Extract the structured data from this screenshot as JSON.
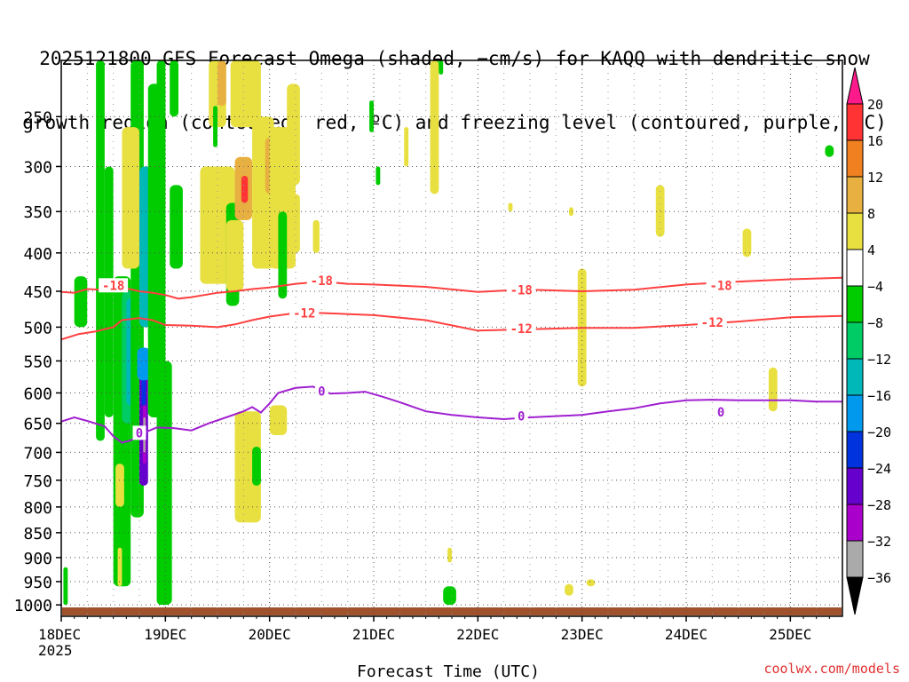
{
  "title_lines": [
    "2025121800 GFS Forecast Omega (shaded, −cm/s) for KAQQ with dendritic snow",
    "growth region (contoured, red, ºC) and freezing level (contoured, purple, ºC)"
  ],
  "credit": "coolwx.com/models",
  "chart_data": {
    "type": "heatmap",
    "title": "2025121800 GFS Forecast Omega (shaded, −cm/s) for KAQQ with dendritic snow growth region (contoured, red, ºC) and freezing level (contoured, purple, ºC)",
    "xlabel": "Forecast Time (UTC)",
    "ylabel": "",
    "x_ticks": [
      "18DEC\n2025",
      "19DEC",
      "20DEC",
      "21DEC",
      "22DEC",
      "23DEC",
      "24DEC",
      "25DEC"
    ],
    "x_range_hours": [
      0,
      180
    ],
    "y_ticks": [
      250,
      300,
      350,
      400,
      450,
      500,
      550,
      600,
      650,
      700,
      750,
      800,
      850,
      900,
      950,
      1000
    ],
    "y_range_hPa": [
      200,
      1025
    ],
    "grid": true,
    "colorbar": {
      "labels": [
        "20",
        "16",
        "12",
        "8",
        "4",
        "−4",
        "−8",
        "−12",
        "−16",
        "−20",
        "−24",
        "−28",
        "−32",
        "−36"
      ],
      "colors": [
        "#ff1a8c",
        "#ff3333",
        "#f08020",
        "#e8b040",
        "#e8e040",
        "#ffffff",
        "#00cc00",
        "#00cc66",
        "#00b8b8",
        "#0099ee",
        "#0033dd",
        "#6600cc",
        "#aa00cc",
        "#aaaaaa",
        "#000000"
      ]
    },
    "contours": [
      {
        "label": "-18",
        "color": "#ff4040",
        "points": [
          [
            0,
            451
          ],
          [
            3,
            452
          ],
          [
            6,
            447
          ],
          [
            9,
            448
          ],
          [
            12,
            445
          ],
          [
            15,
            446
          ],
          [
            18,
            450
          ],
          [
            21,
            452
          ],
          [
            24,
            455
          ],
          [
            27,
            460
          ],
          [
            30,
            458
          ],
          [
            33,
            455
          ],
          [
            36,
            452
          ],
          [
            40,
            450
          ],
          [
            44,
            447
          ],
          [
            48,
            445
          ],
          [
            54,
            440
          ],
          [
            60,
            437
          ],
          [
            66,
            440
          ],
          [
            72,
            441
          ],
          [
            84,
            444
          ],
          [
            96,
            451
          ],
          [
            102,
            449
          ],
          [
            108,
            448
          ],
          [
            120,
            450
          ],
          [
            132,
            448
          ],
          [
            144,
            441
          ],
          [
            156,
            437
          ],
          [
            168,
            434
          ],
          [
            180,
            432
          ]
        ],
        "labels_at": [
          [
            12,
            442
          ],
          [
            60,
            436
          ],
          [
            106,
            448
          ],
          [
            152,
            442
          ]
        ]
      },
      {
        "label": "-12",
        "color": "#ff4040",
        "points": [
          [
            0,
            518
          ],
          [
            4,
            510
          ],
          [
            8,
            506
          ],
          [
            12,
            500
          ],
          [
            14,
            490
          ],
          [
            18,
            487
          ],
          [
            21,
            490
          ],
          [
            24,
            497
          ],
          [
            30,
            498
          ],
          [
            36,
            500
          ],
          [
            40,
            496
          ],
          [
            44,
            490
          ],
          [
            48,
            485
          ],
          [
            54,
            480
          ],
          [
            60,
            480
          ],
          [
            72,
            483
          ],
          [
            84,
            490
          ],
          [
            96,
            505
          ],
          [
            108,
            503
          ],
          [
            120,
            501
          ],
          [
            132,
            501
          ],
          [
            144,
            497
          ],
          [
            156,
            492
          ],
          [
            168,
            486
          ],
          [
            180,
            484
          ]
        ],
        "labels_at": [
          [
            56,
            480
          ],
          [
            106,
            502
          ],
          [
            150,
            493
          ]
        ]
      },
      {
        "label": "0",
        "color": "#a020d0",
        "points": [
          [
            0,
            647
          ],
          [
            3,
            640
          ],
          [
            6,
            646
          ],
          [
            10,
            655
          ],
          [
            12,
            672
          ],
          [
            14,
            683
          ],
          [
            16,
            679
          ],
          [
            18,
            672
          ],
          [
            20,
            663
          ],
          [
            22,
            657
          ],
          [
            26,
            658
          ],
          [
            30,
            662
          ],
          [
            34,
            650
          ],
          [
            38,
            640
          ],
          [
            42,
            630
          ],
          [
            44,
            623
          ],
          [
            46,
            632
          ],
          [
            48,
            617
          ],
          [
            50,
            600
          ],
          [
            54,
            592
          ],
          [
            58,
            590
          ],
          [
            62,
            601
          ],
          [
            66,
            600
          ],
          [
            70,
            598
          ],
          [
            74,
            606
          ],
          [
            78,
            615
          ],
          [
            84,
            630
          ],
          [
            90,
            636
          ],
          [
            96,
            640
          ],
          [
            102,
            643
          ],
          [
            108,
            640
          ],
          [
            114,
            638
          ],
          [
            120,
            636
          ],
          [
            126,
            630
          ],
          [
            132,
            625
          ],
          [
            138,
            617
          ],
          [
            144,
            612
          ],
          [
            150,
            611
          ],
          [
            156,
            612
          ],
          [
            162,
            612
          ],
          [
            168,
            612
          ],
          [
            174,
            614
          ],
          [
            180,
            614
          ]
        ],
        "labels_at": [
          [
            18,
            666
          ],
          [
            60,
            597
          ],
          [
            106,
            638
          ],
          [
            152,
            631
          ]
        ]
      }
    ],
    "shaded_regions": [
      {
        "category": "-8",
        "t": [
          0.5,
          1.5
        ],
        "p": [
          920,
          1000
        ]
      },
      {
        "category": "-8",
        "t": [
          3,
          6
        ],
        "p": [
          430,
          500
        ]
      },
      {
        "category": "-4",
        "t": [
          6,
          8
        ],
        "p": [
          450,
          600
        ]
      },
      {
        "category": "-8",
        "t": [
          8,
          10
        ],
        "p": [
          200,
          680
        ]
      },
      {
        "category": "-8",
        "t": [
          10,
          12
        ],
        "p": [
          300,
          640
        ]
      },
      {
        "category": "-8",
        "t": [
          12,
          16
        ],
        "p": [
          430,
          960
        ]
      },
      {
        "category": "-12",
        "t": [
          14,
          17
        ],
        "p": [
          450,
          650
        ]
      },
      {
        "category": "-16",
        "t": [
          15,
          17
        ],
        "p": [
          460,
          620
        ]
      },
      {
        "category": "-8",
        "t": [
          16,
          19
        ],
        "p": [
          200,
          820
        ]
      },
      {
        "category": "-28",
        "t": [
          18,
          20
        ],
        "p": [
          560,
          760
        ]
      },
      {
        "category": "-32",
        "t": [
          18.8,
          19.6
        ],
        "p": [
          620,
          720
        ]
      },
      {
        "category": "-36",
        "t": [
          18.9,
          19.4
        ],
        "p": [
          640,
          700
        ]
      },
      {
        "category": "-24",
        "t": [
          18.5,
          19.5
        ],
        "p": [
          560,
          620
        ]
      },
      {
        "category": "-20",
        "t": [
          17.5,
          20.5
        ],
        "p": [
          530,
          580
        ]
      },
      {
        "category": "-16",
        "t": [
          18,
          21
        ],
        "p": [
          300,
          500
        ]
      },
      {
        "category": "-12",
        "t": [
          20,
          22
        ],
        "p": [
          300,
          520
        ]
      },
      {
        "category": "-8",
        "t": [
          20,
          24
        ],
        "p": [
          220,
          640
        ]
      },
      {
        "category": "8",
        "t": [
          14.5,
          16.5
        ],
        "p": [
          290,
          340
        ]
      },
      {
        "category": "16",
        "t": [
          15,
          16
        ],
        "p": [
          300,
          320
        ]
      },
      {
        "category": "4",
        "t": [
          14,
          18
        ],
        "p": [
          260,
          420
        ]
      },
      {
        "category": "-8",
        "t": [
          22,
          24
        ],
        "p": [
          200,
          1000
        ]
      },
      {
        "category": "-8",
        "t": [
          22.5,
          25.5
        ],
        "p": [
          550,
          1000
        ]
      },
      {
        "category": "4",
        "t": [
          12.5,
          14.5
        ],
        "p": [
          720,
          800
        ]
      },
      {
        "category": "4",
        "t": [
          13,
          14
        ],
        "p": [
          880,
          960
        ]
      },
      {
        "category": "-8",
        "t": [
          25,
          28
        ],
        "p": [
          320,
          420
        ]
      },
      {
        "category": "4",
        "t": [
          34,
          38
        ],
        "p": [
          200,
          260
        ]
      },
      {
        "category": "8",
        "t": [
          36,
          38
        ],
        "p": [
          200,
          240
        ]
      },
      {
        "category": "4",
        "t": [
          32,
          40
        ],
        "p": [
          300,
          440
        ]
      },
      {
        "category": "-8",
        "t": [
          38,
          41
        ],
        "p": [
          340,
          470
        ]
      },
      {
        "category": "4",
        "t": [
          39,
          46
        ],
        "p": [
          200,
          260
        ]
      },
      {
        "category": "8",
        "t": [
          40,
          44
        ],
        "p": [
          290,
          360
        ]
      },
      {
        "category": "16",
        "t": [
          41.5,
          43
        ],
        "p": [
          310,
          340
        ]
      },
      {
        "category": "4",
        "t": [
          44,
          49
        ],
        "p": [
          250,
          420
        ]
      },
      {
        "category": "8",
        "t": [
          47,
          51
        ],
        "p": [
          270,
          330
        ]
      },
      {
        "category": "16",
        "t": [
          48.5,
          50
        ],
        "p": [
          300,
          330
        ]
      },
      {
        "category": "4",
        "t": [
          48,
          54
        ],
        "p": [
          260,
          420
        ]
      },
      {
        "category": "4",
        "t": [
          38,
          42
        ],
        "p": [
          360,
          450
        ]
      },
      {
        "category": "8",
        "t": [
          41,
          44
        ],
        "p": [
          670,
          760
        ]
      },
      {
        "category": "4",
        "t": [
          40,
          46
        ],
        "p": [
          630,
          830
        ]
      },
      {
        "category": "-8",
        "t": [
          44,
          46
        ],
        "p": [
          690,
          760
        ]
      },
      {
        "category": "4",
        "t": [
          48,
          52
        ],
        "p": [
          620,
          670
        ]
      },
      {
        "category": "4",
        "t": [
          42,
          44
        ],
        "p": [
          180,
          260
        ]
      },
      {
        "category": "-8",
        "t": [
          25,
          27
        ],
        "p": [
          200,
          250
        ]
      },
      {
        "category": "-8",
        "t": [
          35,
          36
        ],
        "p": [
          240,
          280
        ]
      },
      {
        "category": "4",
        "t": [
          52,
          55
        ],
        "p": [
          220,
          320
        ]
      },
      {
        "category": "4",
        "t": [
          53,
          55
        ],
        "p": [
          330,
          400
        ]
      },
      {
        "category": "-8",
        "t": [
          50,
          52
        ],
        "p": [
          350,
          460
        ]
      },
      {
        "category": "4",
        "t": [
          58,
          59.5
        ],
        "p": [
          360,
          400
        ]
      },
      {
        "category": "-8",
        "t": [
          71,
          72
        ],
        "p": [
          235,
          265
        ]
      },
      {
        "category": "-8",
        "t": [
          86,
          87
        ],
        "p": [
          200,
          210
        ]
      },
      {
        "category": "4",
        "t": [
          85,
          87
        ],
        "p": [
          200,
          330
        ]
      },
      {
        "category": "-8",
        "t": [
          87,
          88
        ],
        "p": [
          200,
          212
        ]
      },
      {
        "category": "-8",
        "t": [
          72.5,
          73.5
        ],
        "p": [
          300,
          320
        ]
      },
      {
        "category": "4",
        "t": [
          79,
          80
        ],
        "p": [
          260,
          300
        ]
      },
      {
        "category": "4",
        "t": [
          103,
          104
        ],
        "p": [
          340,
          350
        ]
      },
      {
        "category": "4",
        "t": [
          117,
          118
        ],
        "p": [
          345,
          355
        ]
      },
      {
        "category": "4",
        "t": [
          119,
          121
        ],
        "p": [
          420,
          590
        ]
      },
      {
        "category": "4",
        "t": [
          137,
          139
        ],
        "p": [
          320,
          380
        ]
      },
      {
        "category": "4",
        "t": [
          157,
          159
        ],
        "p": [
          370,
          405
        ]
      },
      {
        "category": "-8",
        "t": [
          176,
          178
        ],
        "p": [
          278,
          290
        ]
      },
      {
        "category": "4",
        "t": [
          163,
          165
        ],
        "p": [
          560,
          630
        ]
      },
      {
        "category": "4",
        "t": [
          89,
          90
        ],
        "p": [
          880,
          910
        ]
      },
      {
        "category": "-8",
        "t": [
          88,
          91
        ],
        "p": [
          960,
          1000
        ]
      },
      {
        "category": "4",
        "t": [
          116,
          118
        ],
        "p": [
          955,
          980
        ]
      },
      {
        "category": "4",
        "t": [
          121,
          123
        ],
        "p": [
          945,
          960
        ]
      }
    ]
  }
}
